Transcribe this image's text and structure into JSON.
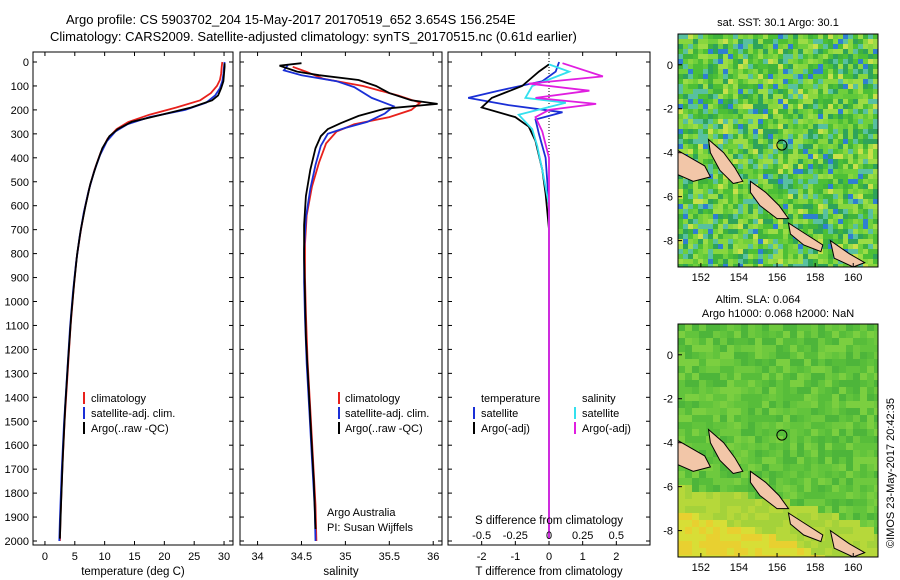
{
  "title_lines": [
    "Argo profile: CS 5903702_204 15-May-2017 20170519_652 3.654S 156.254E",
    "Climatology: CARS2009. Satellite-adjusted climatology: synTS_20170515.nc (0.61d earlier)"
  ],
  "depth_ticks": [
    "0",
    "100",
    "200",
    "300",
    "400",
    "500",
    "600",
    "700",
    "800",
    "900",
    "1000",
    "1100",
    "1200",
    "1300",
    "1400",
    "1500",
    "1600",
    "1700",
    "1800",
    "1900",
    "2000"
  ],
  "colors": {
    "climatology": "#e8211c",
    "satellite": "#1a2fd6",
    "argo": "#000000",
    "sat_salinity": "#33e0ee",
    "argo_salinity": "#e01ee0",
    "land": "#f2c6a8"
  },
  "chart_data": [
    {
      "type": "line",
      "id": "temperature-profile",
      "xlabel": "temperature (deg C)",
      "x_ticks": [
        "0",
        "5",
        "10",
        "15",
        "20",
        "25",
        "30"
      ],
      "xlim": [
        -2,
        31.5
      ],
      "ylim": [
        2000,
        0
      ],
      "legend": [
        "climatology",
        "satellite-adj. clim.",
        "Argo(..raw -QC)"
      ],
      "legend_position": "lower-middle",
      "series": [
        {
          "name": "climatology",
          "color": "#e8211c",
          "points": [
            [
              29.7,
              0
            ],
            [
              29.6,
              20
            ],
            [
              29.5,
              50
            ],
            [
              29.3,
              75
            ],
            [
              28.8,
              100
            ],
            [
              27.8,
              130
            ],
            [
              26,
              160
            ],
            [
              22,
              190
            ],
            [
              17.5,
              220
            ],
            [
              14,
              250
            ],
            [
              12,
              280
            ],
            [
              10.5,
              320
            ],
            [
              9.3,
              380
            ],
            [
              8.3,
              450
            ],
            [
              7.4,
              530
            ],
            [
              6.6,
              620
            ],
            [
              5.9,
              720
            ],
            [
              5.3,
              820
            ],
            [
              4.8,
              950
            ],
            [
              4.3,
              1100
            ],
            [
              3.8,
              1300
            ],
            [
              3.3,
              1500
            ],
            [
              2.9,
              1700
            ],
            [
              2.6,
              1900
            ],
            [
              2.5,
              2000
            ]
          ]
        },
        {
          "name": "satellite-adj. clim.",
          "color": "#1a2fd6",
          "points": [
            [
              30.1,
              0
            ],
            [
              30,
              20
            ],
            [
              29.9,
              50
            ],
            [
              29.7,
              80
            ],
            [
              29.3,
              110
            ],
            [
              28.5,
              140
            ],
            [
              27,
              170
            ],
            [
              23.5,
              200
            ],
            [
              17.5,
              230
            ],
            [
              13.8,
              260
            ],
            [
              11.8,
              290
            ],
            [
              10.4,
              330
            ],
            [
              9.2,
              390
            ],
            [
              8.2,
              460
            ],
            [
              7.3,
              540
            ],
            [
              6.5,
              630
            ],
            [
              5.8,
              730
            ],
            [
              5.2,
              840
            ],
            [
              4.7,
              960
            ],
            [
              4.2,
              1110
            ],
            [
              3.7,
              1310
            ],
            [
              3.2,
              1510
            ],
            [
              2.8,
              1710
            ],
            [
              2.5,
              1910
            ],
            [
              2.4,
              2000
            ]
          ]
        },
        {
          "name": "Argo(..raw -QC)",
          "color": "#000000",
          "points": [
            [
              30.1,
              5
            ],
            [
              30.1,
              20
            ],
            [
              30,
              50
            ],
            [
              29.9,
              80
            ],
            [
              29.5,
              110
            ],
            [
              29,
              140
            ],
            [
              28,
              160
            ],
            [
              24.5,
              190
            ],
            [
              19.5,
              220
            ],
            [
              14.5,
              250
            ],
            [
              12.2,
              280
            ],
            [
              10.8,
              310
            ],
            [
              9.6,
              360
            ],
            [
              8.6,
              430
            ],
            [
              7.6,
              510
            ],
            [
              6.8,
              600
            ],
            [
              6,
              700
            ],
            [
              5.4,
              800
            ],
            [
              4.9,
              920
            ],
            [
              4.4,
              1060
            ],
            [
              3.9,
              1240
            ],
            [
              3.4,
              1440
            ],
            [
              3,
              1640
            ],
            [
              2.7,
              1840
            ],
            [
              2.5,
              1990
            ]
          ]
        }
      ]
    },
    {
      "type": "line",
      "id": "salinity-profile",
      "xlabel": "salinity",
      "x_ticks": [
        "34",
        "34.5",
        "35",
        "35.5",
        "36"
      ],
      "xlim": [
        33.8,
        36.1
      ],
      "ylim": [
        2000,
        0
      ],
      "legend": [
        "climatology",
        "satellite-adj. clim.",
        "Argo(..raw -QC)"
      ],
      "legend_position": "lower-right",
      "annotations": [
        "Argo Australia",
        "PI: Susan Wijffels"
      ],
      "series": [
        {
          "name": "climatology",
          "color": "#e8211c",
          "points": [
            [
              34.4,
              20
            ],
            [
              34.55,
              40
            ],
            [
              34.75,
              70
            ],
            [
              35.2,
              100
            ],
            [
              35.6,
              140
            ],
            [
              35.85,
              170
            ],
            [
              35.75,
              200
            ],
            [
              35.5,
              230
            ],
            [
              35.1,
              260
            ],
            [
              34.9,
              290
            ],
            [
              34.78,
              340
            ],
            [
              34.7,
              420
            ],
            [
              34.62,
              520
            ],
            [
              34.56,
              640
            ],
            [
              34.54,
              760
            ],
            [
              34.54,
              900
            ],
            [
              34.55,
              1050
            ],
            [
              34.57,
              1250
            ],
            [
              34.6,
              1450
            ],
            [
              34.63,
              1650
            ],
            [
              34.66,
              1850
            ],
            [
              34.67,
              2000
            ]
          ]
        },
        {
          "name": "satellite-adj. clim.",
          "color": "#1a2fd6",
          "points": [
            [
              34.35,
              10
            ],
            [
              34.3,
              35
            ],
            [
              34.5,
              55
            ],
            [
              34.9,
              80
            ],
            [
              35.1,
              105
            ],
            [
              35.3,
              150
            ],
            [
              35.55,
              185
            ],
            [
              35.45,
              215
            ],
            [
              35.25,
              250
            ],
            [
              35.0,
              275
            ],
            [
              34.8,
              300
            ],
            [
              34.72,
              350
            ],
            [
              34.66,
              430
            ],
            [
              34.6,
              530
            ],
            [
              34.55,
              650
            ],
            [
              34.53,
              780
            ],
            [
              34.53,
              920
            ],
            [
              34.54,
              1070
            ],
            [
              34.56,
              1260
            ],
            [
              34.59,
              1460
            ],
            [
              34.62,
              1660
            ],
            [
              34.65,
              1860
            ],
            [
              34.66,
              2000
            ]
          ]
        },
        {
          "name": "Argo(..raw -QC)",
          "color": "#000000",
          "points": [
            [
              34.5,
              5
            ],
            [
              34.25,
              15
            ],
            [
              34.45,
              40
            ],
            [
              34.7,
              55
            ],
            [
              35.15,
              75
            ],
            [
              35.35,
              100
            ],
            [
              35.5,
              130
            ],
            [
              35.75,
              160
            ],
            [
              36.05,
              175
            ],
            [
              35.45,
              195
            ],
            [
              35.15,
              225
            ],
            [
              34.95,
              255
            ],
            [
              34.8,
              280
            ],
            [
              34.72,
              310
            ],
            [
              34.66,
              360
            ],
            [
              34.6,
              450
            ],
            [
              34.55,
              560
            ],
            [
              34.53,
              680
            ],
            [
              34.53,
              820
            ],
            [
              34.54,
              980
            ],
            [
              34.55,
              1150
            ],
            [
              34.58,
              1350
            ],
            [
              34.61,
              1550
            ],
            [
              34.64,
              1750
            ],
            [
              34.66,
              1950
            ]
          ]
        }
      ]
    },
    {
      "type": "line",
      "id": "difference-profile",
      "xlabel": "T difference from climatology",
      "x_top_label": "S difference from climatology",
      "x_ticks": [
        "-2",
        "-1",
        "0",
        "1",
        "2"
      ],
      "x_top_ticks": [
        "-0.5",
        "-0.25",
        "0",
        "0.25",
        "0.5"
      ],
      "xlim": [
        -3,
        3
      ],
      "ylim": [
        2000,
        0
      ],
      "legend_temperature": [
        "temperature",
        "satellite",
        "Argo(-adj)"
      ],
      "legend_salinity": [
        "salinity",
        "satellite",
        "Argo(-adj)"
      ],
      "series": [
        {
          "name": "temperature satellite",
          "color": "#1a2fd6",
          "points": [
            [
              0.3,
              0
            ],
            [
              0.2,
              40
            ],
            [
              -0.2,
              80
            ],
            [
              -1.5,
              120
            ],
            [
              -2.4,
              150
            ],
            [
              -1.2,
              180
            ],
            [
              0.4,
              210
            ],
            [
              -0.4,
              240
            ],
            [
              -0.3,
              300
            ],
            [
              -0.1,
              400
            ],
            [
              0,
              600
            ],
            [
              0,
              1000
            ],
            [
              0,
              1500
            ],
            [
              0,
              1990
            ]
          ]
        },
        {
          "name": "temperature Argo(-adj)",
          "color": "#000000",
          "points": [
            [
              0,
              10
            ],
            [
              -0.3,
              40
            ],
            [
              -0.8,
              100
            ],
            [
              -1.7,
              150
            ],
            [
              -2.0,
              190
            ],
            [
              -1.0,
              230
            ],
            [
              -0.6,
              270
            ],
            [
              -0.4,
              330
            ],
            [
              -0.2,
              450
            ],
            [
              -0.1,
              550
            ],
            [
              0,
              700
            ],
            [
              0,
              1200
            ],
            [
              0,
              1990
            ]
          ]
        },
        {
          "name": "salinity satellite",
          "color": "#33e0ee",
          "points": [
            [
              0,
              10
            ],
            [
              0.6,
              40
            ],
            [
              -0.5,
              100
            ],
            [
              -0.7,
              150
            ],
            [
              0.5,
              170
            ],
            [
              -0.9,
              220
            ],
            [
              -0.5,
              280
            ],
            [
              -0.35,
              350
            ],
            [
              -0.2,
              450
            ],
            [
              0,
              600
            ],
            [
              0,
              1000
            ],
            [
              0,
              1990
            ]
          ]
        },
        {
          "name": "salinity Argo(-adj)",
          "color": "#e01ee0",
          "points": [
            [
              0.4,
              5
            ],
            [
              1.6,
              60
            ],
            [
              -0.6,
              90
            ],
            [
              1.2,
              120
            ],
            [
              -0.4,
              150
            ],
            [
              1.4,
              175
            ],
            [
              0,
              200
            ],
            [
              -0.4,
              230
            ],
            [
              -0.2,
              290
            ],
            [
              0,
              400
            ],
            [
              0,
              700
            ],
            [
              0,
              1500
            ],
            [
              0,
              1990
            ]
          ]
        }
      ]
    },
    {
      "type": "heatmap",
      "id": "sst-map",
      "title": "sat. SST: 30.1  Argo: 30.1",
      "x_ticks": [
        "152",
        "154",
        "156",
        "158",
        "160"
      ],
      "y_ticks": [
        "0",
        "-2",
        "-4",
        "-6",
        "-8"
      ],
      "xlim": [
        150.8,
        161.3
      ],
      "ylim": [
        -9.2,
        1.4
      ],
      "argo_position": {
        "lon": 156.254,
        "lat": -3.654
      }
    },
    {
      "type": "heatmap",
      "id": "sla-map",
      "title_lines": [
        "Altim. SLA: 0.064",
        "Argo h1000: 0.068 h2000: NaN"
      ],
      "x_ticks": [
        "152",
        "154",
        "156",
        "158",
        "160"
      ],
      "y_ticks": [
        "0",
        "-2",
        "-4",
        "-6",
        "-8"
      ],
      "xlim": [
        150.8,
        161.3
      ],
      "ylim": [
        -9.2,
        1.4
      ],
      "argo_position": {
        "lon": 156.254,
        "lat": -3.654
      }
    }
  ],
  "credit": "©IMOS 23-May-2017 20:42:35"
}
